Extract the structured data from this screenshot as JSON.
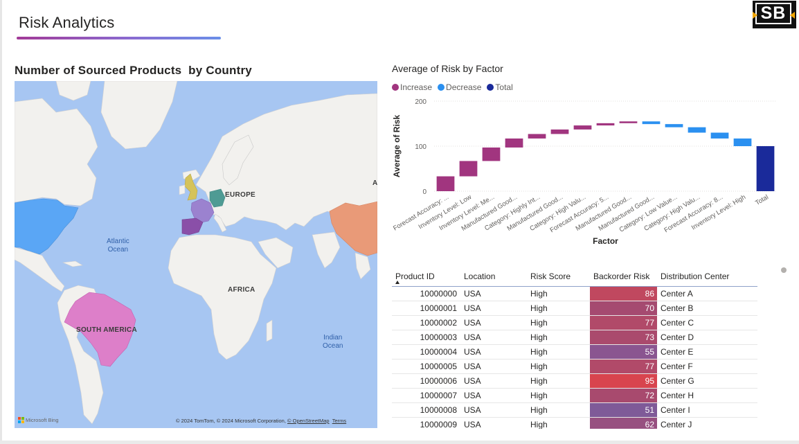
{
  "page": {
    "title": "Risk Analytics"
  },
  "logo": {
    "text": "SB"
  },
  "map": {
    "title": "Number of Sourced Products  by Country",
    "labels": {
      "europe": "EUROPE",
      "africa": "AFRICA",
      "south_america": "SOUTH AMERICA",
      "asia_fragment": "A"
    },
    "oceans": {
      "atlantic": "Atlantic\nOcean",
      "indian": "Indian\nOcean"
    },
    "attribution": {
      "prefix": "© 2024 TomTom, © 2024 Microsoft Corporation, ",
      "osm": "© OpenStreetMap",
      "terms": "Terms"
    },
    "bing": "Microsoft Bing",
    "highlighted_countries": [
      {
        "name": "USA",
        "color": "#5aa6f5"
      },
      {
        "name": "Brazil",
        "color": "#dd7fc9"
      },
      {
        "name": "UK",
        "color": "#d5c35a"
      },
      {
        "name": "France",
        "color": "#9b82cf"
      },
      {
        "name": "Spain",
        "color": "#8a4fa8"
      },
      {
        "name": "Germany",
        "color": "#4f9b94"
      },
      {
        "name": "China",
        "color": "#e99a78"
      }
    ]
  },
  "waterfall": {
    "title": "Average of Risk by Factor",
    "legend": [
      {
        "label": "Increase",
        "color": "#a1357f"
      },
      {
        "label": "Decrease",
        "color": "#2b90f0"
      },
      {
        "label": "Total",
        "color": "#1a2a9a"
      }
    ],
    "colors": {
      "increase": "#a1357f",
      "decrease": "#2b90f0",
      "total": "#1a2a9a"
    }
  },
  "chart_data": {
    "type": "bar",
    "subtype": "waterfall",
    "title": "Average of Risk by Factor",
    "xlabel": "Factor",
    "ylabel": "Average of Risk",
    "ylim": [
      0,
      200
    ],
    "yticks": [
      0,
      100,
      200
    ],
    "grid": true,
    "legend_position": "top-left",
    "categories": [
      "Forecast Accuracy: ...",
      "Inventory Level: Low",
      "Inventory Level: Me...",
      "Manufactured Good...",
      "Category: Highly Int...",
      "Manufactured Good...",
      "Category: High Valu...",
      "Forecast Accuracy: 5...",
      "Manufactured Good...",
      "Manufactured Good...",
      "Category: Low Value...",
      "Category: High Valu...",
      "Forecast Accuracy: 8...",
      "Inventory Level: High",
      "Total"
    ],
    "series": [
      {
        "name": "Increase",
        "values": [
          33,
          34,
          30,
          20,
          10,
          10,
          9,
          5,
          4,
          null,
          null,
          null,
          null,
          null,
          null
        ]
      },
      {
        "name": "Decrease",
        "values": [
          null,
          null,
          null,
          null,
          null,
          null,
          null,
          null,
          null,
          -6,
          -7,
          -12,
          -13,
          -17,
          null
        ]
      },
      {
        "name": "Total",
        "values": [
          null,
          null,
          null,
          null,
          null,
          null,
          null,
          null,
          null,
          null,
          null,
          null,
          null,
          null,
          100
        ]
      }
    ]
  },
  "table": {
    "headers": [
      "Product ID",
      "Location",
      "Risk Score",
      "Backorder Risk",
      "Distribution Center"
    ],
    "sorted_column": "Product ID",
    "rows": [
      {
        "id": "10000000",
        "location": "USA",
        "score": "High",
        "backorder": "86",
        "center": "Center A",
        "color": "#c0485f"
      },
      {
        "id": "10000001",
        "location": "USA",
        "score": "High",
        "backorder": "70",
        "center": "Center B",
        "color": "#a54a70"
      },
      {
        "id": "10000002",
        "location": "USA",
        "score": "High",
        "backorder": "77",
        "center": "Center C",
        "color": "#b14a69"
      },
      {
        "id": "10000003",
        "location": "USA",
        "score": "High",
        "backorder": "73",
        "center": "Center D",
        "color": "#aa4a6d"
      },
      {
        "id": "10000004",
        "location": "USA",
        "score": "High",
        "backorder": "55",
        "center": "Center E",
        "color": "#8a5590"
      },
      {
        "id": "10000005",
        "location": "USA",
        "score": "High",
        "backorder": "77",
        "center": "Center F",
        "color": "#b14a69"
      },
      {
        "id": "10000006",
        "location": "USA",
        "score": "High",
        "backorder": "95",
        "center": "Center G",
        "color": "#d8444e"
      },
      {
        "id": "10000007",
        "location": "USA",
        "score": "High",
        "backorder": "72",
        "center": "Center H",
        "color": "#a84a6e"
      },
      {
        "id": "10000008",
        "location": "USA",
        "score": "High",
        "backorder": "51",
        "center": "Center I",
        "color": "#7f5a98"
      },
      {
        "id": "10000009",
        "location": "USA",
        "score": "High",
        "backorder": "62",
        "center": "Center J",
        "color": "#975080"
      }
    ]
  }
}
